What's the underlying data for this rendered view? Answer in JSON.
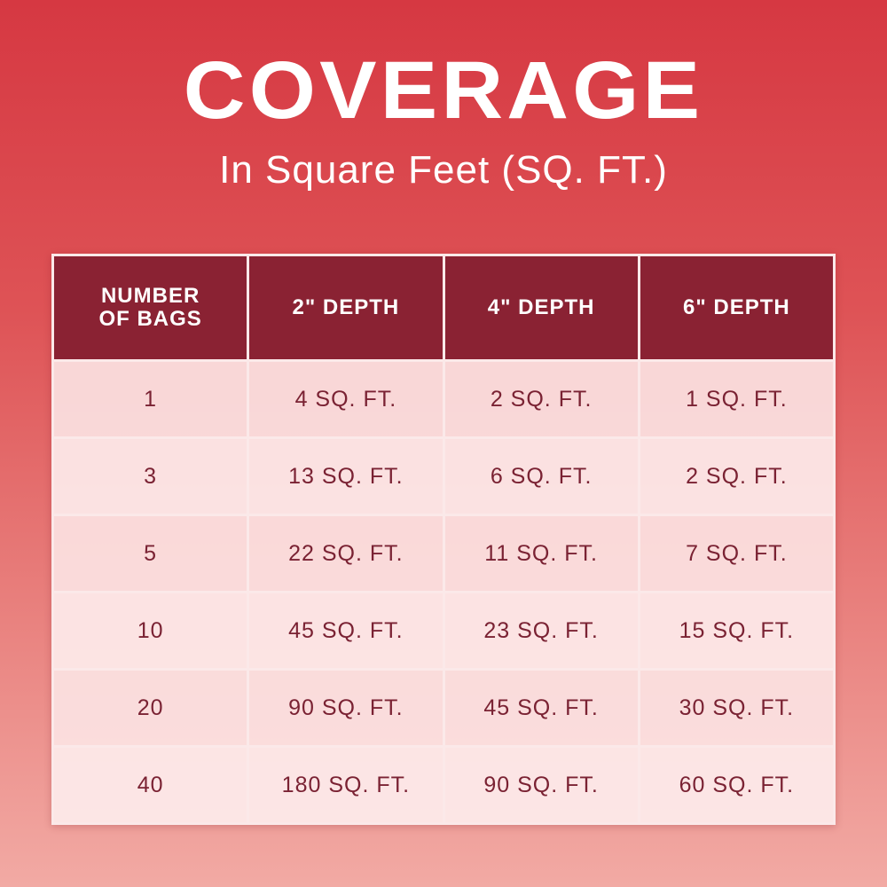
{
  "header": {
    "title": "COVERAGE",
    "subtitle": "In Square Feet (SQ. FT.)"
  },
  "table": {
    "columns": [
      "NUMBER OF BAGS",
      "2\" DEPTH",
      "4\" DEPTH",
      "6\" DEPTH"
    ],
    "rows": [
      [
        "1",
        "4 SQ. FT.",
        "2 SQ. FT.",
        "1 SQ. FT."
      ],
      [
        "3",
        "13 SQ. FT.",
        "6 SQ. FT.",
        "2 SQ. FT."
      ],
      [
        "5",
        "22 SQ. FT.",
        "11 SQ. FT.",
        "7 SQ. FT."
      ],
      [
        "10",
        "45 SQ. FT.",
        "23 SQ. FT.",
        "15 SQ. FT."
      ],
      [
        "20",
        "90 SQ. FT.",
        "45 SQ. FT.",
        "30 SQ. FT."
      ],
      [
        "40",
        "180 SQ. FT.",
        "90 SQ. FT.",
        "60 SQ. FT."
      ]
    ]
  }
}
